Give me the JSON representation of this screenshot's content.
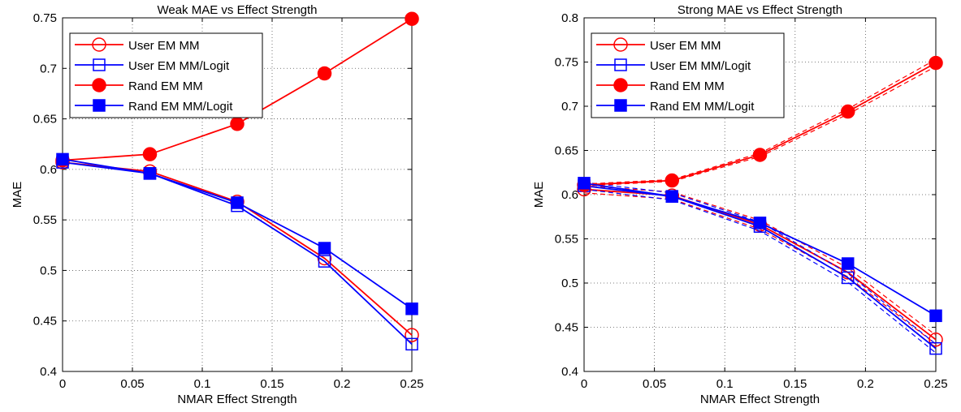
{
  "chart_data": [
    {
      "type": "line",
      "title": "Weak MAE vs Effect Strength",
      "xlabel": "NMAR Effect Strength",
      "ylabel": "MAE",
      "x": [
        0,
        0.0625,
        0.125,
        0.1875,
        0.25
      ],
      "xlim": [
        0,
        0.25
      ],
      "ylim": [
        0.4,
        0.75
      ],
      "xticks": [
        0,
        0.05,
        0.1,
        0.15,
        0.2,
        0.25
      ],
      "xtick_labels": [
        "0",
        "0.05",
        "0.1",
        "0.15",
        "0.2",
        "0.25"
      ],
      "yticks": [
        0.4,
        0.45,
        0.5,
        0.55,
        0.6,
        0.65,
        0.7,
        0.75
      ],
      "ytick_labels": [
        "0.4",
        "0.45",
        "0.5",
        "0.55",
        "0.6",
        "0.65",
        "0.7",
        "0.75"
      ],
      "grid": true,
      "legend_position": "top-left",
      "series": [
        {
          "name": "User EM MM",
          "color": "#ff0000",
          "marker": "circle-open",
          "values": [
            0.607,
            0.598,
            0.568,
            0.512,
            0.436
          ]
        },
        {
          "name": "User EM MM/Logit",
          "color": "#0000ff",
          "marker": "square-open",
          "values": [
            0.607,
            0.596,
            0.564,
            0.509,
            0.427
          ]
        },
        {
          "name": "Rand EM MM",
          "color": "#ff0000",
          "marker": "circle-filled",
          "values": [
            0.609,
            0.615,
            0.645,
            0.695,
            0.749
          ]
        },
        {
          "name": "Rand EM MM/Logit",
          "color": "#0000ff",
          "marker": "square-filled",
          "values": [
            0.61,
            0.596,
            0.567,
            0.522,
            0.462
          ]
        }
      ]
    },
    {
      "type": "line",
      "title": "Strong MAE vs Effect Strength",
      "xlabel": "NMAR Effect Strength",
      "ylabel": "MAE",
      "x": [
        0,
        0.0625,
        0.125,
        0.1875,
        0.25
      ],
      "xlim": [
        0,
        0.25
      ],
      "ylim": [
        0.4,
        0.8
      ],
      "xticks": [
        0,
        0.05,
        0.1,
        0.15,
        0.2,
        0.25
      ],
      "xtick_labels": [
        "0",
        "0.05",
        "0.1",
        "0.15",
        "0.2",
        "0.25"
      ],
      "yticks": [
        0.4,
        0.45,
        0.5,
        0.55,
        0.6,
        0.65,
        0.7,
        0.75,
        0.8
      ],
      "ytick_labels": [
        "0.4",
        "0.45",
        "0.5",
        "0.55",
        "0.6",
        "0.65",
        "0.7",
        "0.75",
        "0.8"
      ],
      "grid": true,
      "legend_position": "top-left",
      "series": [
        {
          "name": "User EM MM",
          "color": "#ff0000",
          "marker": "circle-open",
          "values": [
            0.606,
            0.599,
            0.566,
            0.512,
            0.436
          ],
          "bounds": {
            "upper": [
              0.61,
              0.603,
              0.571,
              0.517,
              0.441
            ],
            "lower": [
              0.602,
              0.595,
              0.561,
              0.507,
              0.431
            ]
          }
        },
        {
          "name": "User EM MM/Logit",
          "color": "#0000ff",
          "marker": "square-open",
          "values": [
            0.61,
            0.598,
            0.564,
            0.506,
            0.426
          ],
          "bounds": {
            "upper": [
              0.614,
              0.602,
              0.569,
              0.511,
              0.431
            ],
            "lower": [
              0.606,
              0.594,
              0.559,
              0.501,
              0.421
            ]
          }
        },
        {
          "name": "Rand EM MM",
          "color": "#ff0000",
          "marker": "circle-filled",
          "values": [
            0.611,
            0.616,
            0.645,
            0.694,
            0.749
          ],
          "bounds": {
            "upper": [
              0.612,
              0.617,
              0.647,
              0.697,
              0.753
            ],
            "lower": [
              0.61,
              0.615,
              0.643,
              0.691,
              0.745
            ]
          }
        },
        {
          "name": "Rand EM MM/Logit",
          "color": "#0000ff",
          "marker": "square-filled",
          "values": [
            0.613,
            0.598,
            0.568,
            0.522,
            0.463
          ]
        }
      ]
    }
  ]
}
